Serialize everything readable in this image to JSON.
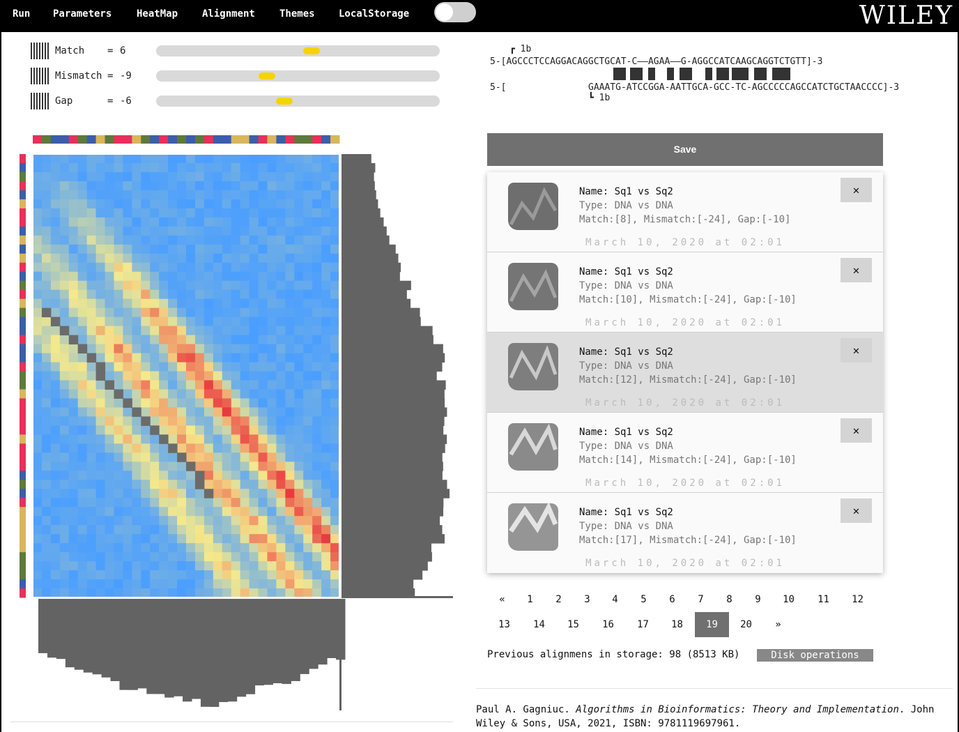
{
  "menu": {
    "items": [
      "Run",
      "Parameters",
      "HeatMap",
      "Alignment",
      "Themes",
      "LocalStorage"
    ],
    "brand": "WILEY"
  },
  "parameters": [
    {
      "label": "Match",
      "value": "6",
      "level": 0.55
    },
    {
      "label": "Mismatch",
      "value": "-9",
      "level": 0.385
    },
    {
      "label": "Gap",
      "value": "-6",
      "level": 0.45
    }
  ],
  "heatmap": {
    "rows": 49,
    "cols": 34,
    "colors": {
      "low": "#4a9eff",
      "mid": "#f5e98c",
      "high": "#e8303c",
      "diag": "#6b6b6b",
      "histogram": "#636363"
    },
    "nucleotide_colors": {
      "A": "#3b5eab",
      "C": "#e8305a",
      "G": "#5e7a3b",
      "T": "#d9b65a"
    }
  },
  "alignment": {
    "top_marker": "1b",
    "bottom_marker": "1b",
    "seq1": "5-[AGCCCTCCAGGACAGGCTGCAT-C——AGAA——G-AGGCCATCAAGCAGGTCTGTT]-3",
    "seq2_prefix": "5-[",
    "seq2": "GAAATG-ATCCGGA-AATTGCA-GCC-TC-AGCCCCCAGCCATCTGCTAACCCC]-3"
  },
  "save_label": "Save",
  "saved": [
    {
      "name": "Name: Sq1 vs Sq2",
      "type": "Type: DNA vs DNA",
      "params": "Match:[8], Mismatch:[-24], Gap:[-10]",
      "date": "March 10, 2020 at 02:01",
      "close": "✕",
      "active": false
    },
    {
      "name": "Name: Sq1 vs Sq2",
      "type": "Type: DNA vs DNA",
      "params": "Match:[10], Mismatch:[-24], Gap:[-10]",
      "date": "March 10, 2020 at 02:01",
      "close": "✕",
      "active": false
    },
    {
      "name": "Name: Sq1 vs Sq2",
      "type": "Type: DNA vs DNA",
      "params": "Match:[12], Mismatch:[-24], Gap:[-10]",
      "date": "March 10, 2020 at 02:01",
      "close": "✕",
      "active": true
    },
    {
      "name": "Name: Sq1 vs Sq2",
      "type": "Type: DNA vs DNA",
      "params": "Match:[14], Mismatch:[-24], Gap:[-10]",
      "date": "March 10, 2020 at 02:01",
      "close": "✕",
      "active": false
    },
    {
      "name": "Name: Sq1 vs Sq2",
      "type": "Type: DNA vs DNA",
      "params": "Match:[17], Mismatch:[-24], Gap:[-10]",
      "date": "March 10, 2020 at 02:01",
      "close": "✕",
      "active": false
    }
  ],
  "pagination": {
    "row1": [
      "«",
      "1",
      "2",
      "3",
      "4",
      "5",
      "6",
      "7",
      "8",
      "9",
      "10",
      "11",
      "12"
    ],
    "row2": [
      "13",
      "14",
      "15",
      "16",
      "17",
      "18",
      "19",
      "20",
      "»"
    ],
    "current": "19"
  },
  "storage": {
    "text": "Previous alignmens in storage: 98 (8513 KB)",
    "disk_button": "Disk operations"
  },
  "citation": {
    "author": "Paul A. Gagniuc.",
    "title": "Algorithms in Bioinformatics: Theory and Implementation",
    "rest": ". John Wiley & Sons, USA, 2021, ISBN: 9781119697961."
  }
}
